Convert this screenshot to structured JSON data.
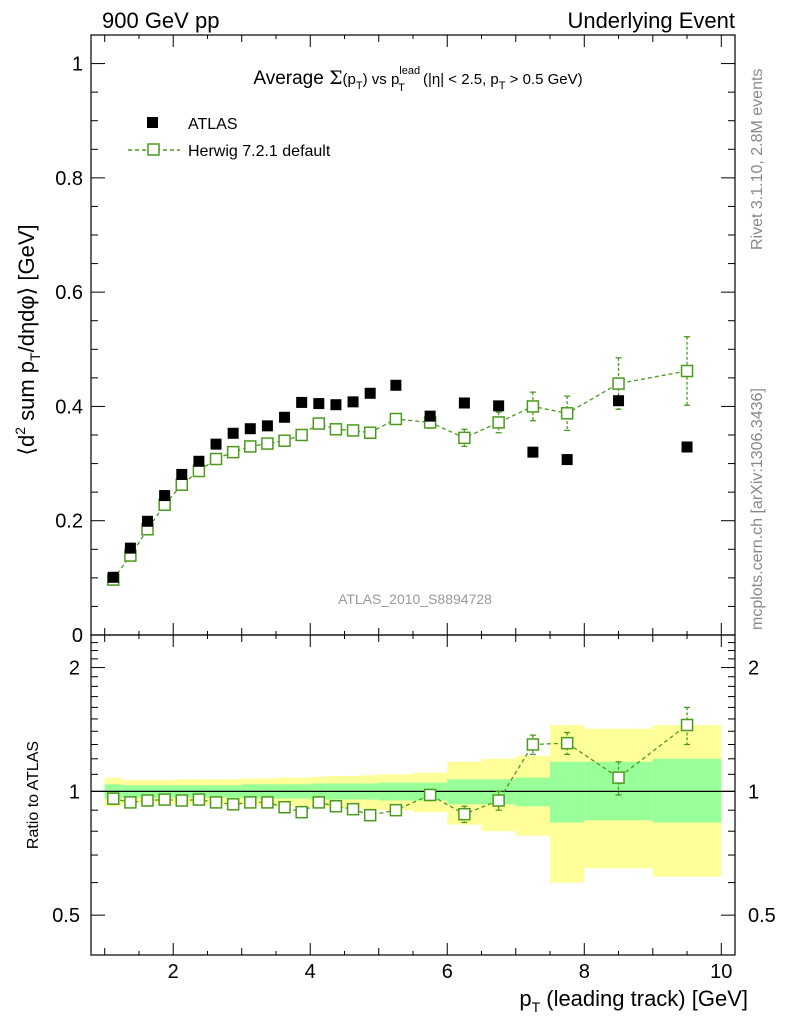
{
  "header": {
    "left": "900 GeV pp",
    "right": "Underlying Event"
  },
  "side_labels": {
    "rivet": "Rivet 3.1.10,  2.8M events",
    "mcplots": "mcplots.cern.ch [arXiv:1306.3436]"
  },
  "chart_data": [
    {
      "type": "scatter",
      "title": "Average Σ(pT) vs pTlead (|η| < 2.5, pT > 0.5 GeV)",
      "title_parts": {
        "lead": "Average ",
        "sigma": "Σ",
        "paren_open": "(p",
        "sub_t1": "T",
        "paren_close": ") vs p",
        "sup_lead": "lead",
        "sub_t2": "T",
        "rest1": " (|η| < 2.5, p",
        "sub_t3": "T",
        "rest2": " > 0.5 GeV)"
      },
      "ylabel_parts": {
        "a": "⟨d",
        "sup2": "2",
        "b": " sum p",
        "subT": "T",
        "c": "/dηdφ⟩ [GeV]"
      },
      "watermark": "ATLAS_2010_S8894728",
      "xlim": [
        0.8,
        10.2
      ],
      "ylim": [
        0,
        1.05
      ],
      "y_ticks": [
        0,
        0.2,
        0.4,
        0.6,
        0.8,
        1
      ],
      "y_tick_labels": [
        "0",
        "0.2",
        "0.4",
        "0.6",
        "0.8",
        "1"
      ],
      "legend_position": "top-left",
      "series": [
        {
          "name": "ATLAS",
          "color": "#000000",
          "marker": "filled-square",
          "x": [
            1.125,
            1.375,
            1.625,
            1.875,
            2.125,
            2.375,
            2.625,
            2.875,
            3.125,
            3.375,
            3.625,
            3.875,
            4.125,
            4.375,
            4.625,
            4.875,
            5.25,
            5.75,
            6.25,
            6.75,
            7.25,
            7.75,
            8.5,
            9.5
          ],
          "y": [
            0.101,
            0.152,
            0.199,
            0.244,
            0.281,
            0.304,
            0.334,
            0.353,
            0.361,
            0.366,
            0.381,
            0.407,
            0.405,
            0.403,
            0.408,
            0.423,
            0.437,
            0.383,
            0.406,
            0.401,
            0.32,
            0.307,
            0.41,
            0.329
          ]
        },
        {
          "name": "Herwig 7.2.1 default",
          "color": "#4b9a1e",
          "marker": "open-square-dashed",
          "x": [
            1.125,
            1.375,
            1.625,
            1.875,
            2.125,
            2.375,
            2.625,
            2.875,
            3.125,
            3.375,
            3.625,
            3.875,
            4.125,
            4.375,
            4.625,
            4.875,
            5.25,
            5.75,
            6.25,
            6.75,
            7.25,
            7.75,
            8.5,
            9.5
          ],
          "y": [
            0.097,
            0.139,
            0.185,
            0.228,
            0.263,
            0.287,
            0.308,
            0.32,
            0.33,
            0.335,
            0.34,
            0.35,
            0.37,
            0.36,
            0.358,
            0.354,
            0.378,
            0.372,
            0.345,
            0.372,
            0.4,
            0.388,
            0.44,
            0.462
          ],
          "yerr": [
            0.004,
            0.004,
            0.004,
            0.004,
            0.004,
            0.004,
            0.004,
            0.004,
            0.004,
            0.004,
            0.004,
            0.004,
            0.006,
            0.006,
            0.006,
            0.006,
            0.006,
            0.01,
            0.015,
            0.018,
            0.025,
            0.03,
            0.045,
            0.06
          ]
        }
      ]
    },
    {
      "type": "scatter",
      "ylabel": "Ratio to ATLAS",
      "xlabel_parts": {
        "p": "p",
        "sub": "T",
        "rest": " (leading track) [GeV]"
      },
      "xlim": [
        0.8,
        10.2
      ],
      "ylim": [
        0.4,
        2.4
      ],
      "y_scale": "log",
      "x_ticks": [
        2,
        4,
        6,
        8,
        10
      ],
      "x_tick_labels": [
        "2",
        "4",
        "6",
        "8",
        "10"
      ],
      "y_ticks": [
        0.5,
        1,
        2
      ],
      "y_tick_labels": [
        "0.5",
        "1",
        "2"
      ],
      "reference_line": 1,
      "bands": {
        "inner_color": "#99ff99",
        "outer_color": "#ffff99",
        "bins": [
          {
            "x0": 1.0,
            "x1": 1.25,
            "inner": [
              0.96,
              1.04
            ],
            "outer": [
              0.92,
              1.08
            ]
          },
          {
            "x0": 1.25,
            "x1": 1.5,
            "inner": [
              0.965,
              1.035
            ],
            "outer": [
              0.935,
              1.065
            ]
          },
          {
            "x0": 1.5,
            "x1": 1.75,
            "inner": [
              0.965,
              1.035
            ],
            "outer": [
              0.935,
              1.065
            ]
          },
          {
            "x0": 1.75,
            "x1": 2.0,
            "inner": [
              0.965,
              1.035
            ],
            "outer": [
              0.935,
              1.065
            ]
          },
          {
            "x0": 2.0,
            "x1": 2.25,
            "inner": [
              0.965,
              1.035
            ],
            "outer": [
              0.93,
              1.07
            ]
          },
          {
            "x0": 2.25,
            "x1": 2.5,
            "inner": [
              0.965,
              1.035
            ],
            "outer": [
              0.93,
              1.07
            ]
          },
          {
            "x0": 2.5,
            "x1": 2.75,
            "inner": [
              0.965,
              1.035
            ],
            "outer": [
              0.93,
              1.07
            ]
          },
          {
            "x0": 2.75,
            "x1": 3.0,
            "inner": [
              0.965,
              1.035
            ],
            "outer": [
              0.93,
              1.07
            ]
          },
          {
            "x0": 3.0,
            "x1": 3.25,
            "inner": [
              0.96,
              1.04
            ],
            "outer": [
              0.925,
              1.075
            ]
          },
          {
            "x0": 3.25,
            "x1": 3.5,
            "inner": [
              0.96,
              1.04
            ],
            "outer": [
              0.925,
              1.075
            ]
          },
          {
            "x0": 3.5,
            "x1": 3.75,
            "inner": [
              0.96,
              1.04
            ],
            "outer": [
              0.92,
              1.08
            ]
          },
          {
            "x0": 3.75,
            "x1": 4.0,
            "inner": [
              0.96,
              1.04
            ],
            "outer": [
              0.92,
              1.08
            ]
          },
          {
            "x0": 4.0,
            "x1": 4.25,
            "inner": [
              0.955,
              1.045
            ],
            "outer": [
              0.915,
              1.085
            ]
          },
          {
            "x0": 4.25,
            "x1": 4.5,
            "inner": [
              0.955,
              1.045
            ],
            "outer": [
              0.91,
              1.09
            ]
          },
          {
            "x0": 4.5,
            "x1": 4.75,
            "inner": [
              0.955,
              1.045
            ],
            "outer": [
              0.91,
              1.09
            ]
          },
          {
            "x0": 4.75,
            "x1": 5.0,
            "inner": [
              0.955,
              1.045
            ],
            "outer": [
              0.905,
              1.095
            ]
          },
          {
            "x0": 5.0,
            "x1": 5.5,
            "inner": [
              0.95,
              1.05
            ],
            "outer": [
              0.9,
              1.1
            ]
          },
          {
            "x0": 5.5,
            "x1": 6.0,
            "inner": [
              0.95,
              1.05
            ],
            "outer": [
              0.89,
              1.11
            ]
          },
          {
            "x0": 6.0,
            "x1": 6.5,
            "inner": [
              0.93,
              1.07
            ],
            "outer": [
              0.83,
              1.18
            ]
          },
          {
            "x0": 6.5,
            "x1": 7.0,
            "inner": [
              0.93,
              1.07
            ],
            "outer": [
              0.8,
              1.2
            ]
          },
          {
            "x0": 7.0,
            "x1": 7.5,
            "inner": [
              0.92,
              1.08
            ],
            "outer": [
              0.78,
              1.22
            ]
          },
          {
            "x0": 7.5,
            "x1": 8.0,
            "inner": [
              0.84,
              1.18
            ],
            "outer": [
              0.6,
              1.45
            ]
          },
          {
            "x0": 8.0,
            "x1": 9.0,
            "inner": [
              0.85,
              1.18
            ],
            "outer": [
              0.65,
              1.42
            ]
          },
          {
            "x0": 9.0,
            "x1": 10.0,
            "inner": [
              0.84,
              1.2
            ],
            "outer": [
              0.62,
              1.45
            ]
          }
        ]
      },
      "series": [
        {
          "name": "Herwig 7.2.1 default",
          "color": "#4b9a1e",
          "marker": "open-square-dashed",
          "x": [
            1.125,
            1.375,
            1.625,
            1.875,
            2.125,
            2.375,
            2.625,
            2.875,
            3.125,
            3.375,
            3.625,
            3.875,
            4.125,
            4.375,
            4.625,
            4.875,
            5.25,
            5.75,
            6.25,
            6.75,
            7.25,
            7.75,
            8.5,
            9.5
          ],
          "y": [
            0.96,
            0.94,
            0.95,
            0.955,
            0.95,
            0.955,
            0.94,
            0.93,
            0.94,
            0.94,
            0.915,
            0.89,
            0.94,
            0.92,
            0.905,
            0.875,
            0.9,
            0.98,
            0.88,
            0.95,
            1.3,
            1.31,
            1.08,
            1.45
          ],
          "yerr": [
            0.01,
            0.01,
            0.01,
            0.01,
            0.01,
            0.01,
            0.01,
            0.01,
            0.01,
            0.01,
            0.01,
            0.01,
            0.015,
            0.015,
            0.015,
            0.015,
            0.015,
            0.03,
            0.04,
            0.05,
            0.07,
            0.08,
            0.1,
            0.15
          ]
        }
      ]
    }
  ]
}
